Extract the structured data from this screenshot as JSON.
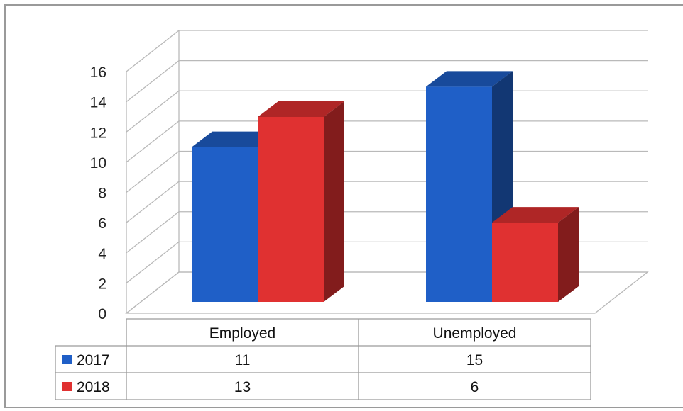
{
  "chart_data": {
    "type": "bar",
    "title": "",
    "xlabel": "",
    "ylabel": "",
    "categories": [
      "Employed",
      "Unemployed"
    ],
    "series": [
      {
        "name": "2017",
        "values": [
          11,
          15
        ],
        "color": "#1f5fc7"
      },
      {
        "name": "2018",
        "values": [
          13,
          6
        ],
        "color": "#e03131"
      }
    ],
    "ylim": [
      0,
      16
    ],
    "yticks": [
      0,
      2,
      4,
      6,
      8,
      10,
      12,
      14,
      16
    ],
    "grid": true,
    "style": "3d-clustered",
    "legend": "data-table-left",
    "data_table": {
      "rows": [
        {
          "key": "2017",
          "cells": [
            "11",
            "15"
          ]
        },
        {
          "key": "2018",
          "cells": [
            "13",
            "6"
          ]
        }
      ]
    }
  }
}
